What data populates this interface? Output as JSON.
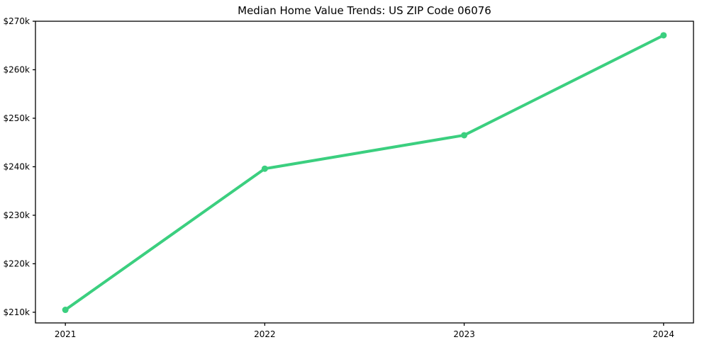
{
  "chart_data": {
    "type": "line",
    "title": "Median Home Value Trends: US ZIP Code 06076",
    "xlabel": "",
    "ylabel": "",
    "x": [
      2021,
      2022,
      2023,
      2024
    ],
    "x_tick_labels": [
      "2021",
      "2022",
      "2023",
      "2024"
    ],
    "series": [
      {
        "name": "Median Home Value",
        "values": [
          210500,
          239600,
          246500,
          267100
        ]
      }
    ],
    "y_ticks": [
      210000,
      220000,
      230000,
      240000,
      250000,
      260000,
      270000
    ],
    "y_tick_labels": [
      "$210k",
      "$220k",
      "$230k",
      "$240k",
      "$250k",
      "$260k",
      "$270k"
    ],
    "xlim": [
      2020.85,
      2024.15
    ],
    "ylim": [
      207800,
      270000
    ],
    "grid": false,
    "legend": "none"
  },
  "colors": {
    "line": "#3bcf7f",
    "marker": "#3bcf7f",
    "axis": "#000000",
    "text": "#000000",
    "background": "#ffffff"
  }
}
